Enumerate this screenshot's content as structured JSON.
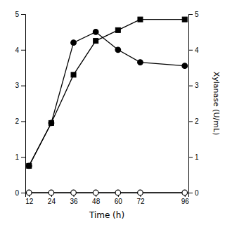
{
  "chart_data": {
    "type": "line",
    "x": [
      12,
      24,
      36,
      48,
      60,
      72,
      96
    ],
    "series": [
      {
        "values": [
          0.75,
          1.95,
          3.3,
          4.25,
          4.55,
          4.85,
          4.85
        ],
        "color": "#000000",
        "marker": "square"
      },
      {
        "values": [
          0.75,
          1.95,
          4.2,
          4.5,
          4.0,
          3.65,
          3.55
        ],
        "color": "#000000",
        "marker": "circle"
      },
      {
        "values": [
          0,
          0,
          0,
          0,
          0,
          0,
          0
        ],
        "color": "#000000",
        "marker": "circle-open"
      }
    ],
    "xlabel": "Time (h)",
    "y2label": "Xylanase (U/mL)",
    "xlim": [
      10,
      98
    ],
    "xticks": [
      12,
      24,
      36,
      48,
      60,
      72,
      96
    ],
    "ylim": [
      0,
      5
    ],
    "yticks": [
      0,
      1,
      2,
      3,
      4,
      5
    ],
    "y2lim": [
      0,
      5
    ],
    "y2ticks": [
      0,
      1,
      2,
      3,
      4,
      5
    ]
  }
}
